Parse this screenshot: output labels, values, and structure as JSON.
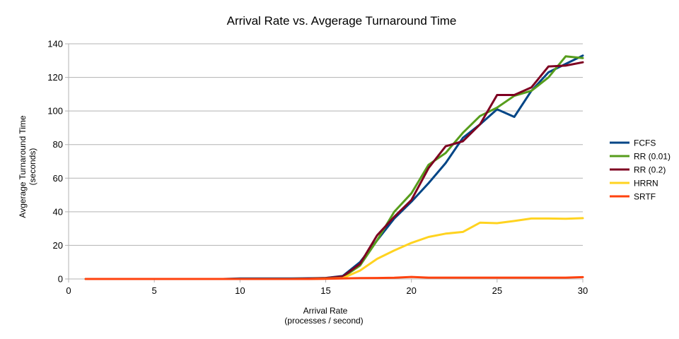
{
  "chart_data": {
    "type": "line",
    "title": "Arrival Rate vs. Avgerage Turnaround Time",
    "xlabel": [
      "Arrival Rate",
      "(processes / second)"
    ],
    "ylabel": [
      "Avgerage Turnaround Time",
      "(seconds)"
    ],
    "xlim": [
      0,
      30
    ],
    "ylim": [
      0,
      140
    ],
    "xticks": [
      0,
      5,
      10,
      15,
      20,
      25,
      30
    ],
    "yticks": [
      0,
      20,
      40,
      60,
      80,
      100,
      120,
      140
    ],
    "grid": true,
    "legend_position": "right",
    "x": [
      1,
      2,
      3,
      4,
      5,
      6,
      7,
      8,
      9,
      10,
      11,
      12,
      13,
      14,
      15,
      16,
      17,
      18,
      19,
      20,
      21,
      22,
      23,
      24,
      25,
      26,
      27,
      28,
      29,
      30
    ],
    "series": [
      {
        "name": "FCFS",
        "color": "#004586",
        "values": [
          0,
          0,
          0,
          0,
          0,
          0,
          0,
          0,
          0,
          0.3,
          0.3,
          0.3,
          0.3,
          0.4,
          0.6,
          1.8,
          10,
          23,
          36,
          46,
          57,
          69,
          84,
          92,
          101,
          96.5,
          112,
          123,
          128,
          133
        ]
      },
      {
        "name": "RR (0.01)",
        "color": "#579d1c",
        "values": [
          0,
          0,
          0,
          0,
          0,
          0,
          0,
          0,
          0,
          0,
          0,
          0,
          0,
          0.2,
          0.5,
          1.0,
          8,
          23,
          40,
          51,
          68,
          75,
          87,
          97,
          102,
          109,
          112,
          120,
          132.5,
          131.5
        ]
      },
      {
        "name": "RR (0.2)",
        "color": "#7e0021",
        "values": [
          0,
          0,
          0,
          0,
          0,
          0,
          0,
          0,
          0,
          0,
          0,
          0,
          0,
          0.2,
          0.5,
          1.5,
          9,
          26,
          37,
          47,
          66,
          79,
          82,
          92,
          109.5,
          109.5,
          114,
          126.5,
          127,
          129
        ]
      },
      {
        "name": "HRRN",
        "color": "#ffd320",
        "values": [
          0,
          0,
          0,
          0,
          0,
          0,
          0,
          0,
          0,
          0,
          0,
          0,
          0,
          0,
          0.2,
          0.5,
          5,
          12,
          17,
          21.5,
          25,
          27,
          28,
          33.5,
          33.2,
          34.5,
          36,
          36,
          35.8,
          36.2
        ]
      },
      {
        "name": "SRTF",
        "color": "#ff420e",
        "values": [
          0,
          0,
          0,
          0,
          0,
          0,
          0,
          0,
          0,
          0,
          0,
          0,
          0,
          0,
          0.1,
          0.3,
          0.5,
          0.6,
          0.7,
          1.2,
          0.8,
          0.8,
          0.8,
          0.8,
          0.8,
          0.8,
          0.8,
          0.8,
          0.8,
          1.1
        ]
      }
    ]
  }
}
